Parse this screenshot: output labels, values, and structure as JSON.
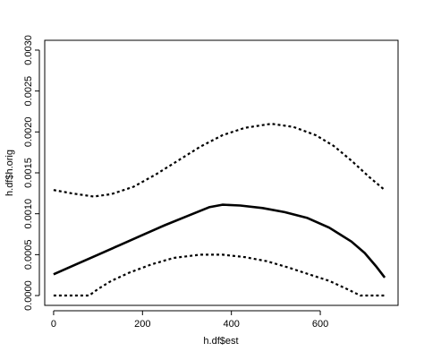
{
  "chart_data": {
    "type": "line",
    "xlabel": "h.df$est",
    "ylabel": "h.df$h.orig",
    "xlim": [
      -20,
      775
    ],
    "ylim": [
      -0.00012,
      0.00312
    ],
    "x_ticks": [
      0,
      200,
      400,
      600
    ],
    "x_tick_labels": [
      "0",
      "200",
      "400",
      "600"
    ],
    "y_ticks": [
      0,
      0.0005,
      0.001,
      0.0015,
      0.002,
      0.0025,
      0.003
    ],
    "y_tick_labels": [
      "0.0000",
      "0.0005",
      "0.0010",
      "0.0015",
      "0.0020",
      "0.0025",
      "0.0030"
    ],
    "grid": false,
    "legend": "none",
    "series": [
      {
        "style": "solid",
        "color": "#000000",
        "points": [
          [
            0,
            0.00026
          ],
          [
            50,
            0.00038
          ],
          [
            100,
            0.0005
          ],
          [
            150,
            0.00062
          ],
          [
            200,
            0.00074
          ],
          [
            250,
            0.00086
          ],
          [
            300,
            0.00097
          ],
          [
            350,
            0.00108
          ],
          [
            380,
            0.00111
          ],
          [
            420,
            0.0011
          ],
          [
            470,
            0.00107
          ],
          [
            520,
            0.00102
          ],
          [
            570,
            0.00095
          ],
          [
            620,
            0.00083
          ],
          [
            670,
            0.00066
          ],
          [
            700,
            0.00052
          ],
          [
            725,
            0.00036
          ],
          [
            745,
            0.00022
          ]
        ]
      },
      {
        "style": "dotted",
        "color": "#000000",
        "points": [
          [
            0,
            0.00129
          ],
          [
            40,
            0.00125
          ],
          [
            90,
            0.00121
          ],
          [
            130,
            0.00124
          ],
          [
            180,
            0.00133
          ],
          [
            230,
            0.00148
          ],
          [
            280,
            0.00165
          ],
          [
            330,
            0.00182
          ],
          [
            380,
            0.00196
          ],
          [
            430,
            0.00205
          ],
          [
            490,
            0.0021
          ],
          [
            540,
            0.00206
          ],
          [
            590,
            0.00196
          ],
          [
            630,
            0.00183
          ],
          [
            670,
            0.00165
          ],
          [
            710,
            0.00145
          ],
          [
            745,
            0.00129
          ]
        ]
      },
      {
        "style": "dotted",
        "color": "#000000",
        "points": [
          [
            0,
            0.0
          ],
          [
            30,
            0.0
          ],
          [
            60,
            0.0
          ],
          [
            80,
            0.0
          ],
          [
            100,
            8e-05
          ],
          [
            130,
            0.00018
          ],
          [
            170,
            0.00028
          ],
          [
            220,
            0.00038
          ],
          [
            270,
            0.00046
          ],
          [
            330,
            0.0005
          ],
          [
            380,
            0.0005
          ],
          [
            430,
            0.00047
          ],
          [
            480,
            0.00042
          ],
          [
            530,
            0.00034
          ],
          [
            580,
            0.00025
          ],
          [
            620,
            0.00018
          ],
          [
            660,
            8e-05
          ],
          [
            690,
            0.0
          ],
          [
            720,
            0.0
          ],
          [
            745,
            0.0
          ]
        ]
      }
    ]
  }
}
